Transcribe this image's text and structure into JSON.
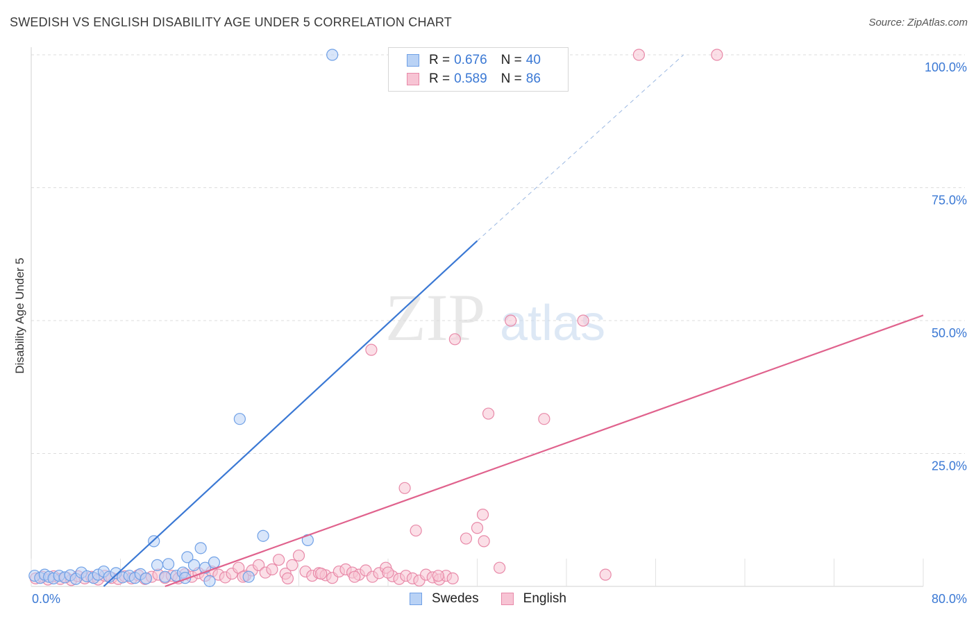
{
  "header": {
    "title": "SWEDISH VS ENGLISH DISABILITY AGE UNDER 5 CORRELATION CHART",
    "source": "Source: ZipAtlas.com"
  },
  "watermark": {
    "zip": "ZIP",
    "atlas": "atlas"
  },
  "legend": {
    "rows": [
      {
        "r_label": "R = ",
        "r_value": "0.676",
        "n_label": "N = ",
        "n_value": "40",
        "color": "#6fa0e6",
        "fill": "#b9d2f5"
      },
      {
        "r_label": "R = ",
        "r_value": "0.589",
        "n_label": "N = ",
        "n_value": "86",
        "color": "#e889a8",
        "fill": "#f7c4d4"
      }
    ]
  },
  "chart_data": {
    "type": "scatter",
    "title": "SWEDISH VS ENGLISH DISABILITY AGE UNDER 5 CORRELATION CHART",
    "ylabel": "Disability Age Under 5",
    "xlim": [
      0,
      80
    ],
    "ylim": [
      0,
      100
    ],
    "x_tick_labels": [
      "0.0%",
      "80.0%"
    ],
    "y_ticks": [
      25,
      50,
      75,
      100
    ],
    "y_tick_labels": [
      "25.0%",
      "50.0%",
      "75.0%",
      "100.0%"
    ],
    "grid": true,
    "legend_position": "top-center",
    "series": [
      {
        "name": "Swedes",
        "color": "#3a78d4",
        "marker_fill": "#b9d2f5",
        "marker_stroke": "#6fa0e6",
        "regression": {
          "x_start": 6.5,
          "y_start": 0,
          "x_solid_end": 40,
          "y_solid_end": 65,
          "x_dash_end": 58.5,
          "y_dash_end": 100
        },
        "points": [
          [
            0.3,
            2.0
          ],
          [
            0.8,
            1.6
          ],
          [
            1.2,
            2.2
          ],
          [
            1.6,
            1.8
          ],
          [
            2.0,
            1.5
          ],
          [
            2.5,
            2.0
          ],
          [
            3.0,
            1.7
          ],
          [
            3.5,
            2.1
          ],
          [
            4.0,
            1.4
          ],
          [
            4.5,
            2.6
          ],
          [
            5.0,
            1.9
          ],
          [
            5.6,
            1.6
          ],
          [
            6.0,
            2.2
          ],
          [
            6.5,
            2.8
          ],
          [
            7.0,
            1.8
          ],
          [
            7.6,
            2.5
          ],
          [
            8.2,
            1.7
          ],
          [
            8.8,
            2.0
          ],
          [
            9.3,
            1.6
          ],
          [
            9.8,
            2.3
          ],
          [
            10.3,
            1.5
          ],
          [
            11.0,
            8.5
          ],
          [
            11.3,
            4.0
          ],
          [
            12.0,
            1.8
          ],
          [
            12.3,
            4.2
          ],
          [
            13.0,
            2.0
          ],
          [
            13.6,
            2.6
          ],
          [
            14.0,
            5.5
          ],
          [
            14.6,
            4.0
          ],
          [
            15.2,
            7.2
          ],
          [
            15.6,
            3.5
          ],
          [
            16.4,
            4.5
          ],
          [
            18.7,
            31.5
          ],
          [
            19.5,
            1.8
          ],
          [
            20.8,
            9.5
          ],
          [
            24.8,
            8.7
          ],
          [
            27.0,
            100
          ],
          [
            34.7,
            100
          ],
          [
            13.8,
            1.6
          ],
          [
            16.0,
            1.0
          ]
        ]
      },
      {
        "name": "English",
        "color": "#e0628d",
        "marker_fill": "#f7c4d4",
        "marker_stroke": "#e889a8",
        "regression": {
          "x_start": 12.0,
          "y_start": 0,
          "x_end": 80,
          "y_end": 51
        },
        "points": [
          [
            0.4,
            1.5
          ],
          [
            1.0,
            1.8
          ],
          [
            1.5,
            1.3
          ],
          [
            2.0,
            1.9
          ],
          [
            2.6,
            1.4
          ],
          [
            3.1,
            1.7
          ],
          [
            3.6,
            1.2
          ],
          [
            4.2,
            1.9
          ],
          [
            4.8,
            1.5
          ],
          [
            5.4,
            1.8
          ],
          [
            6.0,
            1.3
          ],
          [
            6.6,
            2.0
          ],
          [
            7.2,
            1.6
          ],
          [
            7.8,
            1.4
          ],
          [
            8.4,
            1.9
          ],
          [
            9.0,
            1.5
          ],
          [
            9.6,
            2.1
          ],
          [
            10.2,
            1.4
          ],
          [
            10.8,
            1.8
          ],
          [
            11.4,
            2.2
          ],
          [
            12.0,
            1.6
          ],
          [
            12.6,
            2.0
          ],
          [
            13.2,
            1.5
          ],
          [
            13.8,
            2.3
          ],
          [
            14.4,
            1.8
          ],
          [
            15.0,
            2.5
          ],
          [
            15.6,
            2.0
          ],
          [
            16.2,
            2.8
          ],
          [
            16.8,
            2.2
          ],
          [
            17.4,
            1.7
          ],
          [
            18.0,
            2.4
          ],
          [
            18.6,
            3.5
          ],
          [
            19.2,
            2.0
          ],
          [
            19.8,
            3.0
          ],
          [
            20.4,
            4.0
          ],
          [
            21.0,
            2.6
          ],
          [
            21.6,
            3.2
          ],
          [
            22.2,
            5.0
          ],
          [
            22.8,
            2.4
          ],
          [
            23.4,
            4.0
          ],
          [
            24.0,
            5.8
          ],
          [
            24.6,
            2.8
          ],
          [
            25.2,
            2.0
          ],
          [
            25.8,
            2.5
          ],
          [
            26.4,
            2.1
          ],
          [
            27.0,
            1.6
          ],
          [
            27.6,
            2.8
          ],
          [
            28.2,
            3.2
          ],
          [
            28.8,
            2.6
          ],
          [
            29.4,
            2.2
          ],
          [
            30.0,
            3.0
          ],
          [
            30.6,
            1.8
          ],
          [
            31.2,
            2.5
          ],
          [
            31.8,
            3.5
          ],
          [
            32.4,
            1.9
          ],
          [
            33.0,
            1.4
          ],
          [
            33.6,
            2.0
          ],
          [
            34.2,
            1.5
          ],
          [
            34.8,
            1.1
          ],
          [
            35.4,
            2.2
          ],
          [
            36.0,
            1.7
          ],
          [
            36.6,
            1.3
          ],
          [
            37.2,
            2.0
          ],
          [
            37.8,
            1.5
          ],
          [
            30.5,
            44.5
          ],
          [
            33.5,
            18.5
          ],
          [
            34.5,
            10.5
          ],
          [
            38.0,
            46.5
          ],
          [
            39.0,
            9.0
          ],
          [
            40.0,
            11.0
          ],
          [
            40.5,
            13.5
          ],
          [
            40.6,
            8.5
          ],
          [
            41.0,
            32.5
          ],
          [
            42.0,
            3.5
          ],
          [
            43.0,
            50.0
          ],
          [
            46.0,
            31.5
          ],
          [
            49.5,
            50.0
          ],
          [
            51.5,
            2.2
          ],
          [
            54.5,
            100
          ],
          [
            61.5,
            100
          ],
          [
            19.0,
            1.8
          ],
          [
            23.0,
            1.5
          ],
          [
            26.0,
            2.4
          ],
          [
            29.0,
            1.8
          ],
          [
            32.0,
            2.6
          ],
          [
            36.5,
            2.0
          ]
        ]
      }
    ]
  }
}
